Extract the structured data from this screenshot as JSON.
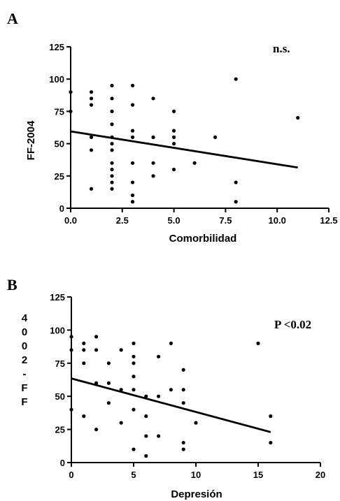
{
  "chart_data": [
    {
      "type": "scatter",
      "panel": "A",
      "annotation": "n.s.",
      "xlabel": "Comorbilidad",
      "ylabel": "FF-2004",
      "xlim": [
        0,
        12.5
      ],
      "ylim": [
        0,
        125
      ],
      "xticks": [
        "0.0",
        "2.5",
        "5.0",
        "7.5",
        "10.0",
        "12.5"
      ],
      "xtick_values": [
        0,
        2.5,
        5,
        7.5,
        10,
        12.5
      ],
      "yticks": [
        "0",
        "25",
        "50",
        "75",
        "100",
        "125"
      ],
      "ytick_values": [
        0,
        25,
        50,
        75,
        100,
        125
      ],
      "points": [
        [
          0,
          90
        ],
        [
          0,
          75
        ],
        [
          1,
          90
        ],
        [
          1,
          85
        ],
        [
          1,
          80
        ],
        [
          1,
          55
        ],
        [
          1,
          45
        ],
        [
          1,
          15
        ],
        [
          2,
          95
        ],
        [
          2,
          85
        ],
        [
          2,
          75
        ],
        [
          2,
          65
        ],
        [
          2,
          55
        ],
        [
          2,
          50
        ],
        [
          2,
          45
        ],
        [
          2,
          35
        ],
        [
          2,
          30
        ],
        [
          2,
          25
        ],
        [
          2,
          20
        ],
        [
          2,
          15
        ],
        [
          3,
          95
        ],
        [
          3,
          80
        ],
        [
          3,
          60
        ],
        [
          3,
          55
        ],
        [
          3,
          35
        ],
        [
          3,
          20
        ],
        [
          3,
          10
        ],
        [
          3,
          5
        ],
        [
          4,
          85
        ],
        [
          4,
          55
        ],
        [
          4,
          35
        ],
        [
          4,
          25
        ],
        [
          5,
          75
        ],
        [
          5,
          60
        ],
        [
          5,
          55
        ],
        [
          5,
          50
        ],
        [
          5,
          30
        ],
        [
          6,
          35
        ],
        [
          7,
          55
        ],
        [
          8,
          100
        ],
        [
          8,
          20
        ],
        [
          8,
          5
        ],
        [
          11,
          70
        ]
      ],
      "regression": {
        "x": [
          0,
          11
        ],
        "y": [
          59.5,
          31.5
        ]
      }
    },
    {
      "type": "scatter",
      "panel": "B",
      "annotation": "P <0.02",
      "xlabel": "Depresión",
      "ylabel_chars": [
        "4",
        "0",
        "0",
        "2",
        "-",
        "F",
        "F"
      ],
      "xlim": [
        0,
        20
      ],
      "ylim": [
        0,
        125
      ],
      "xticks": [
        "0",
        "5",
        "10",
        "15",
        "20"
      ],
      "xtick_values": [
        0,
        5,
        10,
        15,
        20
      ],
      "yticks": [
        "0",
        "25",
        "50",
        "75",
        "100",
        "125"
      ],
      "ytick_values": [
        0,
        25,
        50,
        75,
        100,
        125
      ],
      "points": [
        [
          0,
          95
        ],
        [
          0,
          85
        ],
        [
          0,
          40
        ],
        [
          1,
          90
        ],
        [
          1,
          85
        ],
        [
          1,
          75
        ],
        [
          1,
          35
        ],
        [
          2,
          95
        ],
        [
          2,
          85
        ],
        [
          2,
          60
        ],
        [
          2,
          25
        ],
        [
          3,
          75
        ],
        [
          3,
          60
        ],
        [
          3,
          45
        ],
        [
          4,
          85
        ],
        [
          4,
          55
        ],
        [
          4,
          30
        ],
        [
          5,
          90
        ],
        [
          5,
          80
        ],
        [
          5,
          75
        ],
        [
          5,
          65
        ],
        [
          5,
          55
        ],
        [
          5,
          40
        ],
        [
          5,
          10
        ],
        [
          6,
          50
        ],
        [
          6,
          35
        ],
        [
          6,
          20
        ],
        [
          6,
          5
        ],
        [
          7,
          80
        ],
        [
          7,
          50
        ],
        [
          7,
          20
        ],
        [
          8,
          90
        ],
        [
          8,
          55
        ],
        [
          9,
          70
        ],
        [
          9,
          55
        ],
        [
          9,
          45
        ],
        [
          9,
          15
        ],
        [
          9,
          10
        ],
        [
          10,
          30
        ],
        [
          15,
          90
        ],
        [
          16,
          35
        ],
        [
          16,
          15
        ]
      ],
      "regression": {
        "x": [
          0,
          16
        ],
        "y": [
          63.5,
          23
        ]
      }
    }
  ]
}
